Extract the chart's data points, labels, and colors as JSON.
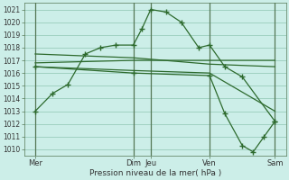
{
  "bg_color": "#cceee8",
  "grid_color": "#99ccbb",
  "line_color": "#2d6a2d",
  "xlabel": "Pression niveau de la mer( hPa )",
  "ylim": [
    1009.5,
    1021.5
  ],
  "yticks": [
    1010,
    1011,
    1012,
    1013,
    1014,
    1015,
    1016,
    1017,
    1018,
    1019,
    1020,
    1021
  ],
  "xlim": [
    0,
    12
  ],
  "vline_positions": [
    0.5,
    5.0,
    5.8,
    8.5,
    11.5
  ],
  "xtick_positions": [
    0.5,
    5.0,
    5.8,
    8.5,
    11.5
  ],
  "xtick_labels": [
    "Mer",
    "Dim",
    "Jeu",
    "Ven",
    "Sam"
  ],
  "series": [
    {
      "x": [
        0.5,
        1.3,
        2.0,
        2.8,
        3.5,
        4.2,
        5.0,
        5.4,
        5.8,
        6.5,
        7.2,
        8.0,
        8.5,
        9.2,
        10.0,
        11.5
      ],
      "y": [
        1013.0,
        1014.4,
        1015.1,
        1017.5,
        1018.0,
        1018.2,
        1018.2,
        1019.5,
        1021.0,
        1020.8,
        1020.0,
        1018.0,
        1018.2,
        1016.5,
        1015.7,
        1012.2
      ],
      "with_markers": true
    },
    {
      "x": [
        0.5,
        5.0,
        8.5,
        11.5
      ],
      "y": [
        1016.8,
        1017.0,
        1017.0,
        1017.0
      ],
      "with_markers": false
    },
    {
      "x": [
        0.5,
        5.0,
        8.5,
        11.5
      ],
      "y": [
        1017.5,
        1017.2,
        1016.7,
        1016.5
      ],
      "with_markers": false
    },
    {
      "x": [
        0.5,
        5.0,
        8.5,
        11.5
      ],
      "y": [
        1016.5,
        1016.2,
        1016.0,
        1013.0
      ],
      "with_markers": false
    },
    {
      "x": [
        0.5,
        5.0,
        8.5,
        9.2,
        10.0,
        10.5,
        11.0,
        11.5
      ],
      "y": [
        1016.5,
        1016.0,
        1015.8,
        1012.8,
        1010.3,
        1009.8,
        1011.0,
        1012.2
      ],
      "with_markers": true
    }
  ]
}
